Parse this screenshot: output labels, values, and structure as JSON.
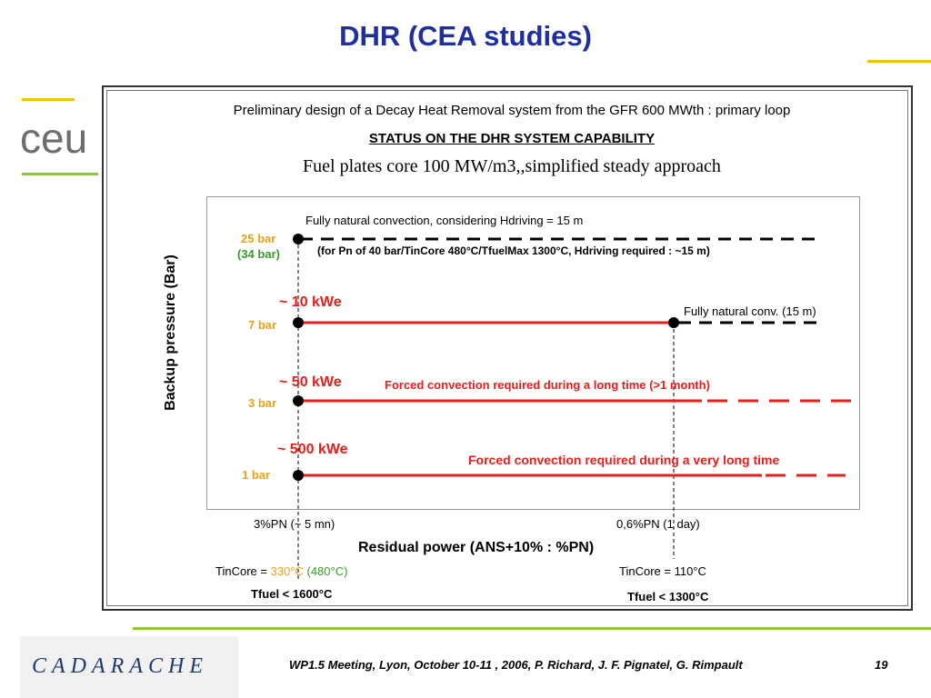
{
  "slide": {
    "title": "DHR (CEA studies)",
    "logo_text": "ceu",
    "heading1": "Preliminary design of a Decay Heat Removal system from the GFR 600 MWth : primary loop",
    "heading2": "STATUS ON THE DHR SYSTEM CAPABILITY",
    "heading3": "Fuel plates core 100 MW/m3,,simplified steady approach",
    "footer_org": "CADARACHE",
    "footer_text": "WP1.5 Meeting, Lyon, October 10-11 , 2006, P. Richard, J. F. Pignatel, G. Rimpault",
    "page_number": "19"
  },
  "diagram": {
    "y_axis_label": "Backup pressure (Bar)",
    "x_axis_label": "Residual power (ANS+10% : %PN)",
    "top_note": "Fully natural convection, considering Hdriving = 15 m",
    "top_subnote": "(for Pn of 40 bar/TinCore 480°C/TfuelMax 1300°C, Hdriving required : ~15 m)",
    "levels": [
      {
        "pressure": "25 bar",
        "pressure_alt": "(34 bar)",
        "power": "",
        "annotation": ""
      },
      {
        "pressure": "7 bar",
        "power": "~ 10 kWe",
        "annotation": "Fully natural conv. (15 m)"
      },
      {
        "pressure": "3 bar",
        "power": "~ 50 kWe",
        "annotation": "Forced convection required during a long time (>1 month)"
      },
      {
        "pressure": "1 bar",
        "power": "~ 500 kWe",
        "annotation": "Forced convection required during a very long time"
      }
    ],
    "x_ticks": [
      {
        "label": "3%PN (~ 5 mn)"
      },
      {
        "label": "0,6%PN (1 day)"
      }
    ],
    "conditions_left": {
      "tincore_prefix": "TinCore = ",
      "tincore_value": "330°C",
      "tincore_alt": "(480°C)",
      "tfuel": "Tfuel < 1600°C"
    },
    "conditions_right": {
      "tincore": "TinCore = 110°C",
      "tfuel": "Tfuel < 1300°C"
    },
    "colors": {
      "red": "#e3201b",
      "black": "#000000",
      "orange": "#e8a317",
      "green": "#3a9a2a",
      "title_blue": "#1f2fa0"
    }
  }
}
